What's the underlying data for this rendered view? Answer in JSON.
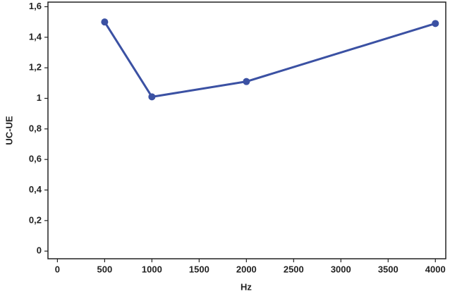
{
  "chart_data": {
    "type": "line",
    "x_label": "Hz",
    "y_label": "UC-UE",
    "x": [
      500,
      1000,
      2000,
      4000
    ],
    "series": [
      {
        "name": "UC-UE",
        "color": "#3b51a3",
        "values": [
          1.5,
          1.01,
          1.11,
          1.49
        ]
      }
    ],
    "xlim": [
      -100,
      4110
    ],
    "ylim": [
      -0.05,
      1.63
    ],
    "xticks": [
      0,
      500,
      1000,
      1500,
      2000,
      2500,
      3000,
      3500,
      4000
    ],
    "yticks": [
      0,
      {
        "value": 0.2,
        "label": "0,2"
      },
      {
        "value": 0.4,
        "label": "0,4"
      },
      {
        "value": 0.6,
        "label": "0,6"
      },
      {
        "value": 0.8,
        "label": "0,8"
      },
      1,
      {
        "value": 1.2,
        "label": "1,2"
      },
      {
        "value": 1.4,
        "label": "1,4"
      },
      {
        "value": 1.6,
        "label": "1,6"
      }
    ]
  }
}
